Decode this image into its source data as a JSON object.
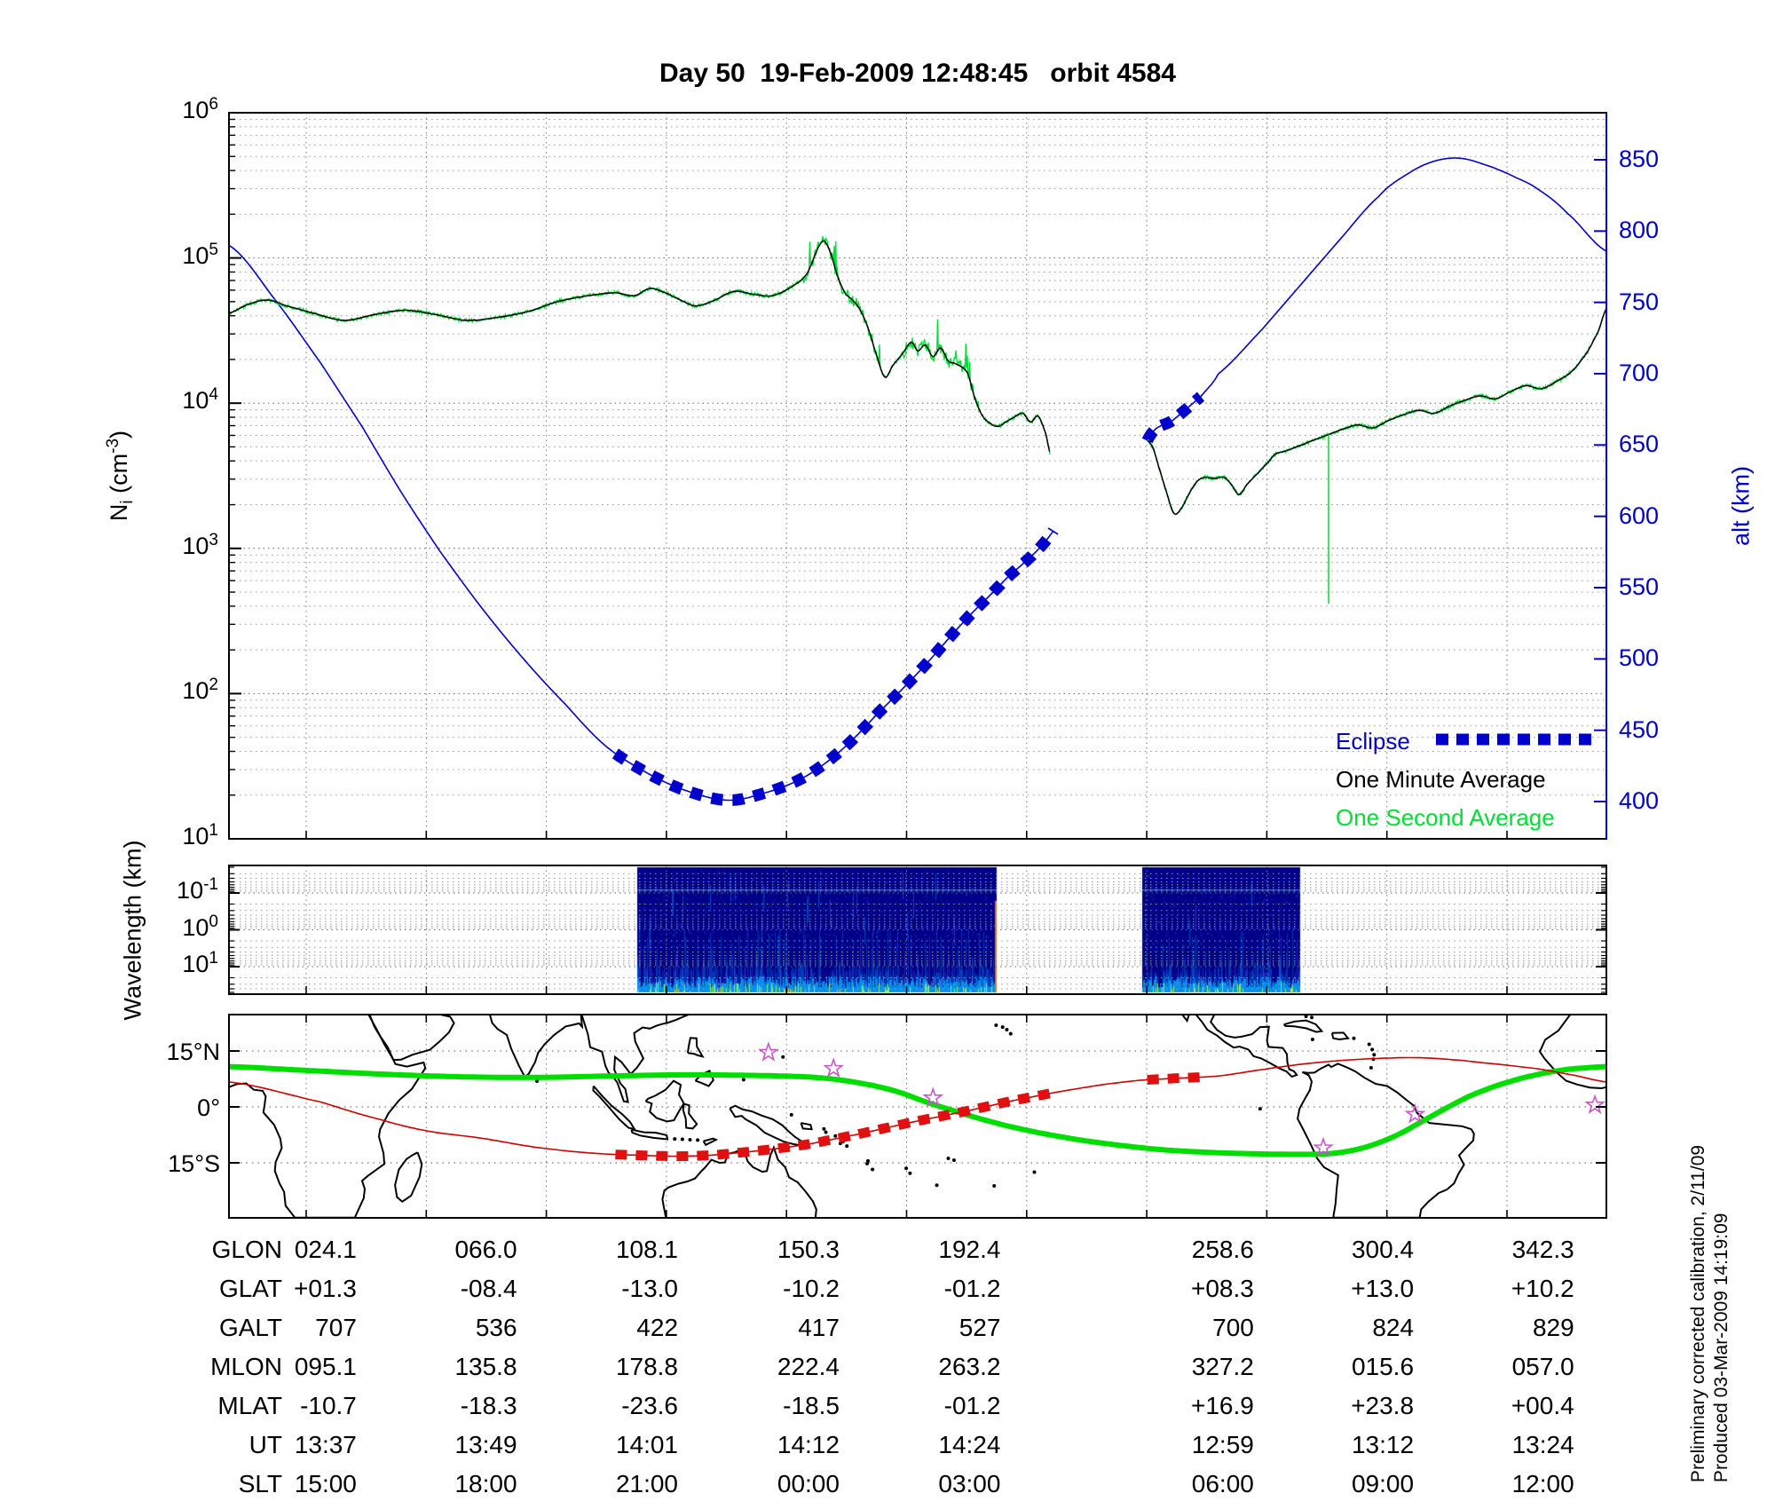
{
  "title": "Day 50  19-Feb-2009 12:48:45   orbit 4584",
  "colors": {
    "blue": "#0000CC",
    "bright_green": "#00DD33",
    "minute_black": "#000000",
    "map_green": "#00DD00",
    "track_red": "#CC0000",
    "eclipse_red": "#E01010",
    "star_magenta": "#C855C8",
    "spectro_bg": "#000088"
  },
  "top_plot": {
    "y_left": {
      "label_pre": "N",
      "label_sub": "i",
      "label_mid": " (cm",
      "label_sup": "-3",
      "label_post": ")",
      "base": "10",
      "tick_exponents": [
        6,
        5,
        4,
        3,
        2,
        1
      ]
    },
    "y_right": {
      "label": "alt (km)",
      "ticks": [
        850,
        800,
        750,
        700,
        650,
        600,
        550,
        500,
        450,
        400
      ]
    },
    "legend": [
      {
        "label": "Eclipse",
        "color": "blue",
        "style": "dashed"
      },
      {
        "label": "One Minute Average",
        "color": "minute_black",
        "style": "solid"
      },
      {
        "label": "One Second Average",
        "color": "bright_green",
        "style": "solid"
      }
    ]
  },
  "middle_plot": {
    "y_label": "Wavelength (km)",
    "base": "10",
    "tick_exponents": [
      -1,
      0,
      1
    ]
  },
  "map": {
    "lat_ticks": [
      "15°N",
      "0°",
      "15°S"
    ]
  },
  "table": {
    "rows": [
      {
        "label": "GLON",
        "values": [
          "024.1",
          "066.0",
          "108.1",
          "150.3",
          "192.4",
          "258.6",
          "300.4",
          "342.3"
        ]
      },
      {
        "label": "GLAT",
        "values": [
          "+01.3",
          "-08.4",
          "-13.0",
          "-10.2",
          "-01.2",
          "+08.3",
          "+13.0",
          "+10.2"
        ]
      },
      {
        "label": "GALT",
        "values": [
          "707",
          "536",
          "422",
          "417",
          "527",
          "700",
          "824",
          "829"
        ]
      },
      {
        "label": "MLON",
        "values": [
          "095.1",
          "135.8",
          "178.8",
          "222.4",
          "263.2",
          "327.2",
          "015.6",
          "057.0"
        ]
      },
      {
        "label": "MLAT",
        "values": [
          "-10.7",
          "-18.3",
          "-23.6",
          "-18.5",
          "-01.2",
          "+16.9",
          "+23.8",
          "+00.4"
        ]
      },
      {
        "label": "UT",
        "values": [
          "13:37",
          "13:49",
          "14:01",
          "14:12",
          "14:24",
          "12:59",
          "13:12",
          "13:24"
        ]
      },
      {
        "label": "SLT",
        "values": [
          "15:00",
          "18:00",
          "21:00",
          "00:00",
          "03:00",
          "06:00",
          "09:00",
          "12:00"
        ]
      }
    ]
  },
  "side_text": [
    "Preliminary corrected calibration, 2/11/09",
    "Produced 03-Mar-2009 14:19:09"
  ],
  "chart_data": {
    "type": "line",
    "x_axis": {
      "kind": "geographic_longitude_deg",
      "range": [
        0,
        360
      ]
    },
    "table_columns_lon": [
      24.1,
      66.0,
      108.1,
      150.3,
      192.4,
      258.6,
      300.4,
      342.3
    ],
    "top": {
      "ni_axis": {
        "scale": "log",
        "range_exp": [
          1,
          6
        ],
        "unit": "cm-3"
      },
      "alt_axis": {
        "range": [
          400,
          850
        ],
        "unit": "km"
      },
      "altitude_km": [
        [
          0,
          790
        ],
        [
          12,
          752
        ],
        [
          24.1,
          707
        ],
        [
          35,
          662
        ],
        [
          45,
          617
        ],
        [
          55,
          576
        ],
        [
          66,
          536
        ],
        [
          77,
          500
        ],
        [
          88,
          468
        ],
        [
          98,
          440
        ],
        [
          108,
          422
        ],
        [
          118,
          409
        ],
        [
          130,
          401
        ],
        [
          140,
          406
        ],
        [
          150.3,
          417
        ],
        [
          160,
          436
        ],
        [
          170,
          463
        ],
        [
          181,
          493
        ],
        [
          192.4,
          527
        ],
        [
          203,
          556
        ],
        [
          215.5,
          590
        ],
        [
          240,
          653
        ],
        [
          247,
          668
        ],
        [
          254,
          684
        ],
        [
          258.6,
          700
        ],
        [
          270,
          731
        ],
        [
          280,
          762
        ],
        [
          290,
          793
        ],
        [
          300.4,
          824
        ],
        [
          308,
          840
        ],
        [
          315,
          849
        ],
        [
          322,
          851
        ],
        [
          330,
          845
        ],
        [
          336,
          838
        ],
        [
          342.3,
          829
        ],
        [
          350,
          812
        ],
        [
          360,
          786
        ]
      ],
      "eclipse_lon_ranges": [
        [
          101,
          215.5
        ],
        [
          240,
          254
        ]
      ],
      "data_gap_lon": [
        215.5,
        240
      ],
      "ni_log10_segments": [
        [
          [
            0,
            4.62
          ],
          [
            5,
            4.68
          ],
          [
            10,
            4.71
          ],
          [
            15,
            4.67
          ],
          [
            22,
            4.62
          ],
          [
            30,
            4.57
          ],
          [
            38,
            4.61
          ],
          [
            46,
            4.64
          ],
          [
            54,
            4.61
          ],
          [
            62,
            4.57
          ],
          [
            70,
            4.59
          ],
          [
            78,
            4.63
          ],
          [
            86,
            4.7
          ],
          [
            94,
            4.74
          ],
          [
            101,
            4.76
          ],
          [
            106,
            4.74
          ],
          [
            110,
            4.79
          ],
          [
            114,
            4.76
          ],
          [
            118,
            4.71
          ],
          [
            122,
            4.67
          ],
          [
            127,
            4.71
          ],
          [
            132,
            4.77
          ],
          [
            137,
            4.75
          ],
          [
            142,
            4.74
          ],
          [
            147,
            4.8
          ],
          [
            151,
            4.89
          ],
          [
            155,
            5.11
          ],
          [
            157,
            5.05
          ],
          [
            159,
            4.88
          ],
          [
            161,
            4.76
          ],
          [
            163,
            4.71
          ],
          [
            165,
            4.64
          ],
          [
            167,
            4.52
          ],
          [
            169,
            4.35
          ],
          [
            171.4,
            4.18
          ],
          [
            173.5,
            4.26
          ],
          [
            176,
            4.34
          ],
          [
            178.4,
            4.42
          ],
          [
            180,
            4.36
          ],
          [
            182,
            4.4
          ],
          [
            184,
            4.32
          ],
          [
            186,
            4.38
          ],
          [
            188,
            4.29
          ],
          [
            190,
            4.27
          ],
          [
            193,
            4.21
          ],
          [
            195,
            4.03
          ],
          [
            197,
            3.91
          ],
          [
            199,
            3.86
          ],
          [
            201,
            3.84
          ],
          [
            203,
            3.87
          ],
          [
            205,
            3.9
          ],
          [
            207.5,
            3.93
          ],
          [
            209.5,
            3.87
          ],
          [
            211.5,
            3.91
          ],
          [
            213.5,
            3.79
          ],
          [
            214.6,
            3.66
          ]
        ],
        [
          [
            240.1,
            3.74
          ],
          [
            241.5,
            3.69
          ],
          [
            243,
            3.56
          ],
          [
            245,
            3.39
          ],
          [
            247,
            3.24
          ],
          [
            249,
            3.28
          ],
          [
            251,
            3.38
          ],
          [
            253,
            3.46
          ],
          [
            255,
            3.49
          ],
          [
            257.5,
            3.48
          ],
          [
            260,
            3.49
          ],
          [
            262,
            3.44
          ],
          [
            264,
            3.37
          ],
          [
            266,
            3.44
          ],
          [
            269,
            3.52
          ],
          [
            271.5,
            3.59
          ],
          [
            273.5,
            3.65
          ],
          [
            276,
            3.67
          ],
          [
            279,
            3.7
          ],
          [
            283,
            3.74
          ],
          [
            287,
            3.78
          ],
          [
            291,
            3.82
          ],
          [
            295,
            3.85
          ],
          [
            299,
            3.83
          ],
          [
            303,
            3.88
          ],
          [
            307,
            3.92
          ],
          [
            311,
            3.95
          ],
          [
            315,
            3.93
          ],
          [
            319,
            3.98
          ],
          [
            323,
            4.02
          ],
          [
            327,
            4.05
          ],
          [
            331,
            4.03
          ],
          [
            335,
            4.08
          ],
          [
            339,
            4.12
          ],
          [
            343,
            4.1
          ],
          [
            347,
            4.15
          ],
          [
            351,
            4.22
          ],
          [
            355,
            4.35
          ],
          [
            358,
            4.5
          ],
          [
            360,
            4.65
          ]
        ]
      ],
      "ni_down_spike": {
        "lon": 287.4,
        "log10_bottom": 2.62
      },
      "noise_regions_lon": [
        [
          150,
          170
        ],
        [
          176,
          196
        ]
      ]
    },
    "spectrogram": {
      "wavelength_axis": {
        "scale": "log",
        "tick_exp": [
          -1,
          0,
          1
        ],
        "inverted": true,
        "unit": "km"
      },
      "segments_lon": [
        [
          106.7,
          200.6
        ],
        [
          238.7,
          280.0
        ]
      ]
    },
    "map": {
      "lat_shown_range": [
        -29.8,
        24.8
      ],
      "lat_gridlines": [
        15,
        0,
        -15
      ],
      "magnetic_equator": [
        [
          0,
          10.8
        ],
        [
          20,
          9.8
        ],
        [
          40,
          8.8
        ],
        [
          60,
          8.1
        ],
        [
          80,
          7.9
        ],
        [
          100,
          8.3
        ],
        [
          120,
          8.6
        ],
        [
          140,
          8.4
        ],
        [
          152,
          8.0
        ],
        [
          160,
          7.2
        ],
        [
          168,
          5.8
        ],
        [
          175,
          4.0
        ],
        [
          182,
          1.4
        ],
        [
          188,
          -0.6
        ],
        [
          195,
          -2.8
        ],
        [
          203,
          -5.0
        ],
        [
          212,
          -7.0
        ],
        [
          222,
          -8.8
        ],
        [
          232,
          -10.2
        ],
        [
          243,
          -11.4
        ],
        [
          254,
          -12.1
        ],
        [
          265,
          -12.5
        ],
        [
          276,
          -12.7
        ],
        [
          287,
          -12.6
        ],
        [
          294,
          -11.6
        ],
        [
          300,
          -9.8
        ],
        [
          306,
          -7.2
        ],
        [
          312,
          -3.8
        ],
        [
          318,
          -0.4
        ],
        [
          324,
          2.8
        ],
        [
          331,
          5.6
        ],
        [
          339,
          8.0
        ],
        [
          348,
          9.8
        ],
        [
          355,
          10.5
        ],
        [
          360,
          10.8
        ]
      ],
      "ground_track": [
        [
          0,
          6.7
        ],
        [
          24.1,
          1.3
        ],
        [
          40,
          -3.5
        ],
        [
          52,
          -6.5
        ],
        [
          66,
          -8.4
        ],
        [
          80,
          -10.8
        ],
        [
          95,
          -12.4
        ],
        [
          108,
          -13.0
        ],
        [
          120,
          -13.2
        ],
        [
          132,
          -12.4
        ],
        [
          150.3,
          -10.2
        ],
        [
          165,
          -7.2
        ],
        [
          178,
          -4.2
        ],
        [
          192.4,
          -1.2
        ],
        [
          205,
          1.7
        ],
        [
          220,
          4.6
        ],
        [
          235,
          6.8
        ],
        [
          246,
          7.6
        ],
        [
          258.6,
          8.3
        ],
        [
          270,
          10.0
        ],
        [
          280,
          11.4
        ],
        [
          290,
          12.4
        ],
        [
          300.4,
          13.0
        ],
        [
          310,
          13.2
        ],
        [
          318,
          12.8
        ],
        [
          328,
          11.8
        ],
        [
          342.3,
          10.2
        ],
        [
          352,
          8.4
        ],
        [
          360,
          6.7
        ]
      ],
      "track_eclipse_lon_ranges": [
        [
          101,
          215.5
        ],
        [
          240,
          254
        ]
      ],
      "stars_lon_lat": [
        [
          141,
          14.6
        ],
        [
          158,
          10.3
        ],
        [
          184,
          2.4
        ],
        [
          286,
          -11.0
        ],
        [
          310,
          -2.0
        ],
        [
          357,
          0.5
        ]
      ]
    }
  }
}
